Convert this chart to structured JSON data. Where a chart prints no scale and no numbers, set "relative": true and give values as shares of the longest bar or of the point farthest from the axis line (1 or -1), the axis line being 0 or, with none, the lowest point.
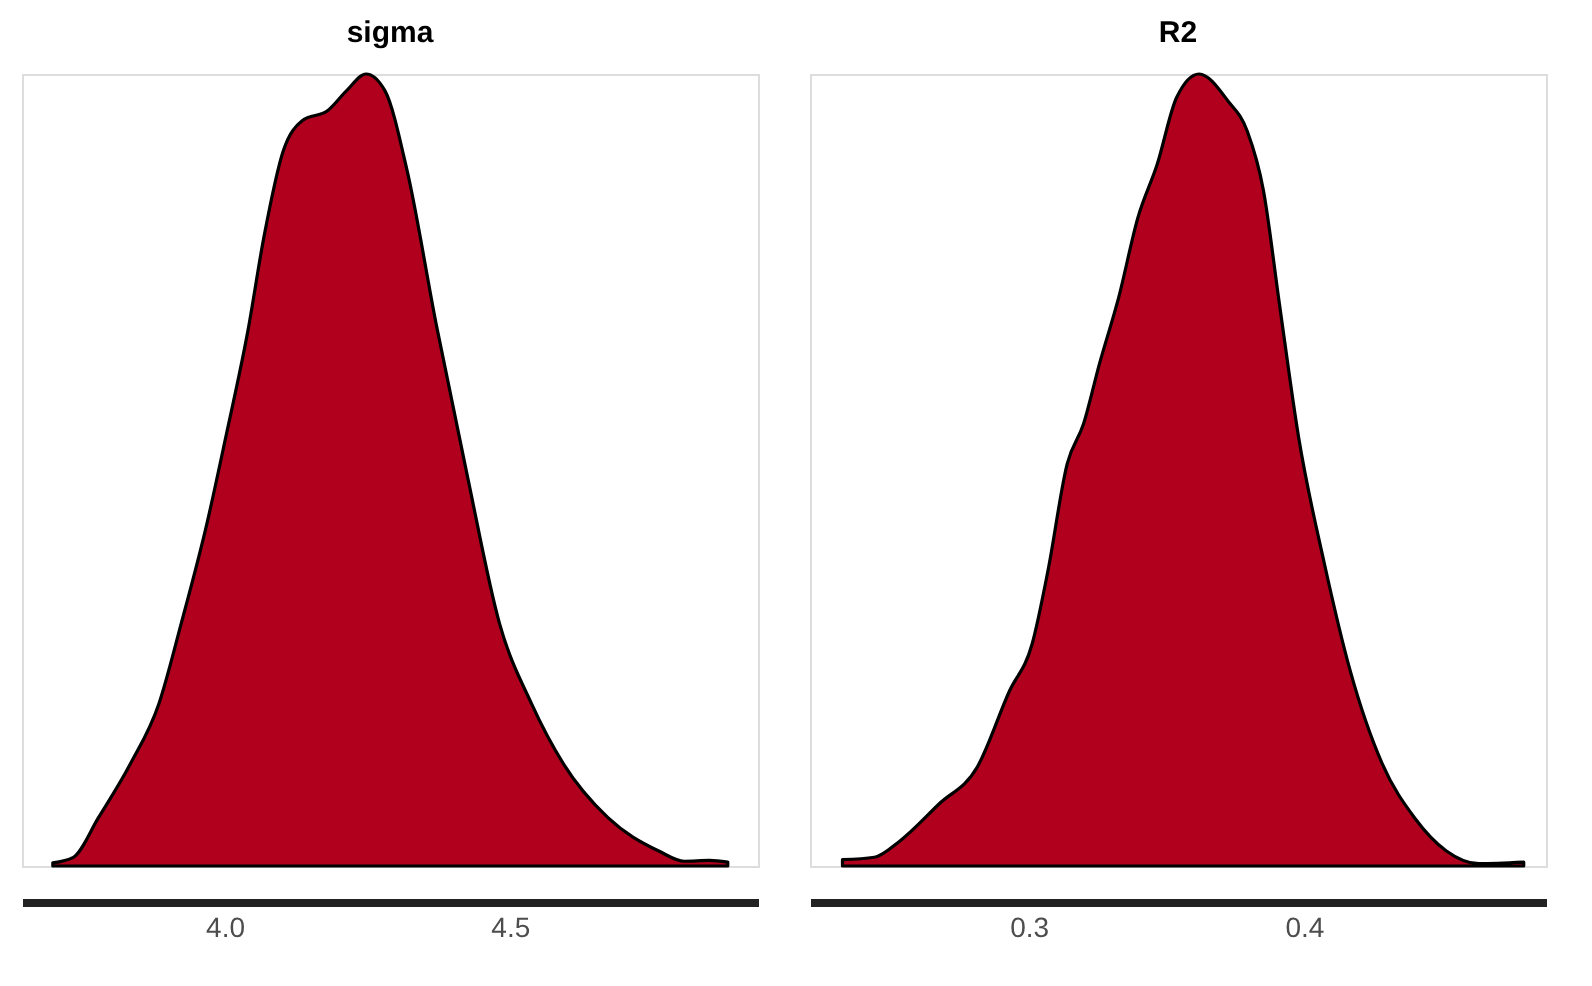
{
  "chart_data": [
    {
      "type": "area",
      "title": "sigma",
      "relative": true,
      "xlim": [
        3.645,
        4.935
      ],
      "xticks": [
        {
          "value": 4.0,
          "label": "4.0"
        },
        {
          "value": 4.5,
          "label": "4.5"
        }
      ],
      "x": [
        3.699,
        3.735,
        3.779,
        3.835,
        3.885,
        3.924,
        3.969,
        4.002,
        4.041,
        4.069,
        4.103,
        4.136,
        4.181,
        4.214,
        4.248,
        4.281,
        4.32,
        4.371,
        4.426,
        4.482,
        4.538,
        4.594,
        4.672,
        4.761,
        4.806,
        4.85,
        4.882
      ],
      "series": [
        {
          "color": "#b0001e",
          "values": [
            0.004,
            0.011,
            0.061,
            0.129,
            0.205,
            0.306,
            0.432,
            0.541,
            0.676,
            0.794,
            0.903,
            0.941,
            0.954,
            0.979,
            1.0,
            0.979,
            0.878,
            0.684,
            0.491,
            0.306,
            0.205,
            0.129,
            0.061,
            0.019,
            0.006,
            0.007,
            0.005
          ]
        }
      ]
    },
    {
      "type": "area",
      "title": "R2",
      "relative": true,
      "xlim": [
        0.2205,
        0.488
      ],
      "xticks": [
        0.3,
        0.4
      ],
      "x": [
        0.2323,
        0.2439,
        0.2533,
        0.2673,
        0.2813,
        0.293,
        0.3012,
        0.307,
        0.314,
        0.3199,
        0.3257,
        0.3327,
        0.3397,
        0.3467,
        0.3537,
        0.3619,
        0.3724,
        0.3794,
        0.3853,
        0.3911,
        0.3981,
        0.4075,
        0.4168,
        0.4285,
        0.4402,
        0.4518,
        0.4635,
        0.4799
      ],
      "series": [
        {
          "color": "#b0001e",
          "values": [
            0.008,
            0.011,
            0.032,
            0.078,
            0.125,
            0.221,
            0.28,
            0.373,
            0.508,
            0.558,
            0.634,
            0.718,
            0.819,
            0.886,
            0.97,
            1.0,
            0.966,
            0.928,
            0.853,
            0.71,
            0.541,
            0.381,
            0.247,
            0.129,
            0.061,
            0.019,
            0.003,
            0.005
          ]
        }
      ]
    }
  ]
}
